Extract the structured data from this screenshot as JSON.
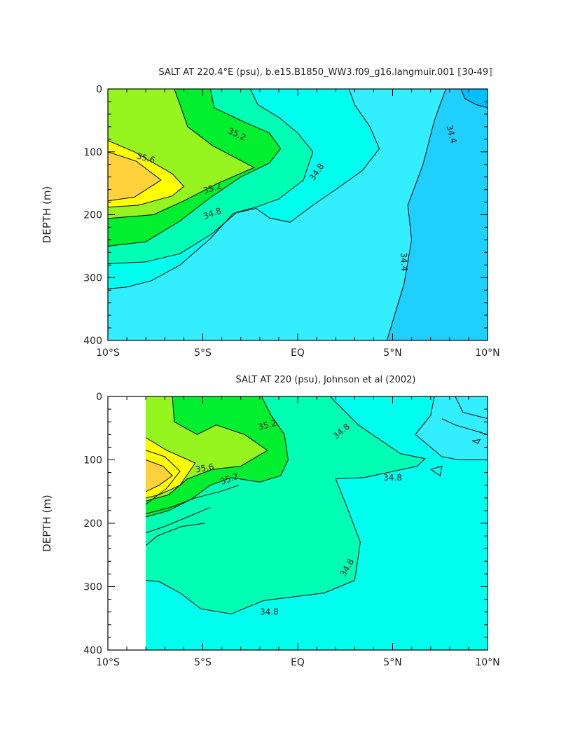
{
  "chart_data": [
    {
      "type": "heatmap",
      "title": "SALT AT 220.4°E (psu), b.e15.B1850_WW3.f09_g16.langmuir.001 ⟦30-49⟧",
      "xlabel": "",
      "ylabel": "DEPTH (m)",
      "x_ticks": [
        "10°S",
        "5°S",
        "EQ",
        "5°N",
        "10°N"
      ],
      "x_tick_values": [
        -10,
        -5,
        0,
        5,
        10
      ],
      "y_ticks": [
        "0",
        "100",
        "200",
        "300",
        "400"
      ],
      "y_tick_values": [
        0,
        100,
        200,
        300,
        400
      ],
      "xlim": [
        -10,
        10
      ],
      "ylim": [
        400,
        0
      ],
      "data_x_start": -10,
      "contour_labels": [
        {
          "text": "35.6",
          "x": -8.0,
          "y": 110,
          "angle": 15
        },
        {
          "text": "35.2",
          "x": -3.2,
          "y": 72,
          "angle": 25
        },
        {
          "text": "35.2",
          "x": -4.5,
          "y": 158,
          "angle": -18
        },
        {
          "text": "34.8",
          "x": -4.5,
          "y": 198,
          "angle": -20
        },
        {
          "text": "34.8",
          "x": 1.0,
          "y": 132,
          "angle": -55
        },
        {
          "text": "34.4",
          "x": 5.6,
          "y": 275,
          "angle": 88
        },
        {
          "text": "34.4",
          "x": 8.1,
          "y": 72,
          "angle": 75
        }
      ]
    },
    {
      "type": "heatmap",
      "title": "SALT AT 220 (psu), Johnson et al (2002)",
      "xlabel": "",
      "ylabel": "DEPTH (m)",
      "x_ticks": [
        "10°S",
        "5°S",
        "EQ",
        "5°N",
        "10°N"
      ],
      "x_tick_values": [
        -10,
        -5,
        0,
        5,
        10
      ],
      "y_ticks": [
        "0",
        "100",
        "200",
        "300",
        "400"
      ],
      "y_tick_values": [
        0,
        100,
        200,
        300,
        400
      ],
      "xlim": [
        -10,
        10
      ],
      "ylim": [
        400,
        0
      ],
      "data_x_start": -8,
      "contour_labels": [
        {
          "text": "35.6",
          "x": -4.9,
          "y": 113,
          "angle": -10
        },
        {
          "text": "35.2",
          "x": -1.6,
          "y": 45,
          "angle": -15
        },
        {
          "text": "35.2",
          "x": -3.6,
          "y": 130,
          "angle": -20
        },
        {
          "text": "34.8",
          "x": 2.3,
          "y": 55,
          "angle": -40
        },
        {
          "text": "34.8",
          "x": 5.0,
          "y": 128,
          "angle": 0
        },
        {
          "text": "34.8",
          "x": 2.6,
          "y": 270,
          "angle": -60
        },
        {
          "text": "34.8",
          "x": -1.5,
          "y": 340,
          "angle": 0
        }
      ]
    }
  ]
}
